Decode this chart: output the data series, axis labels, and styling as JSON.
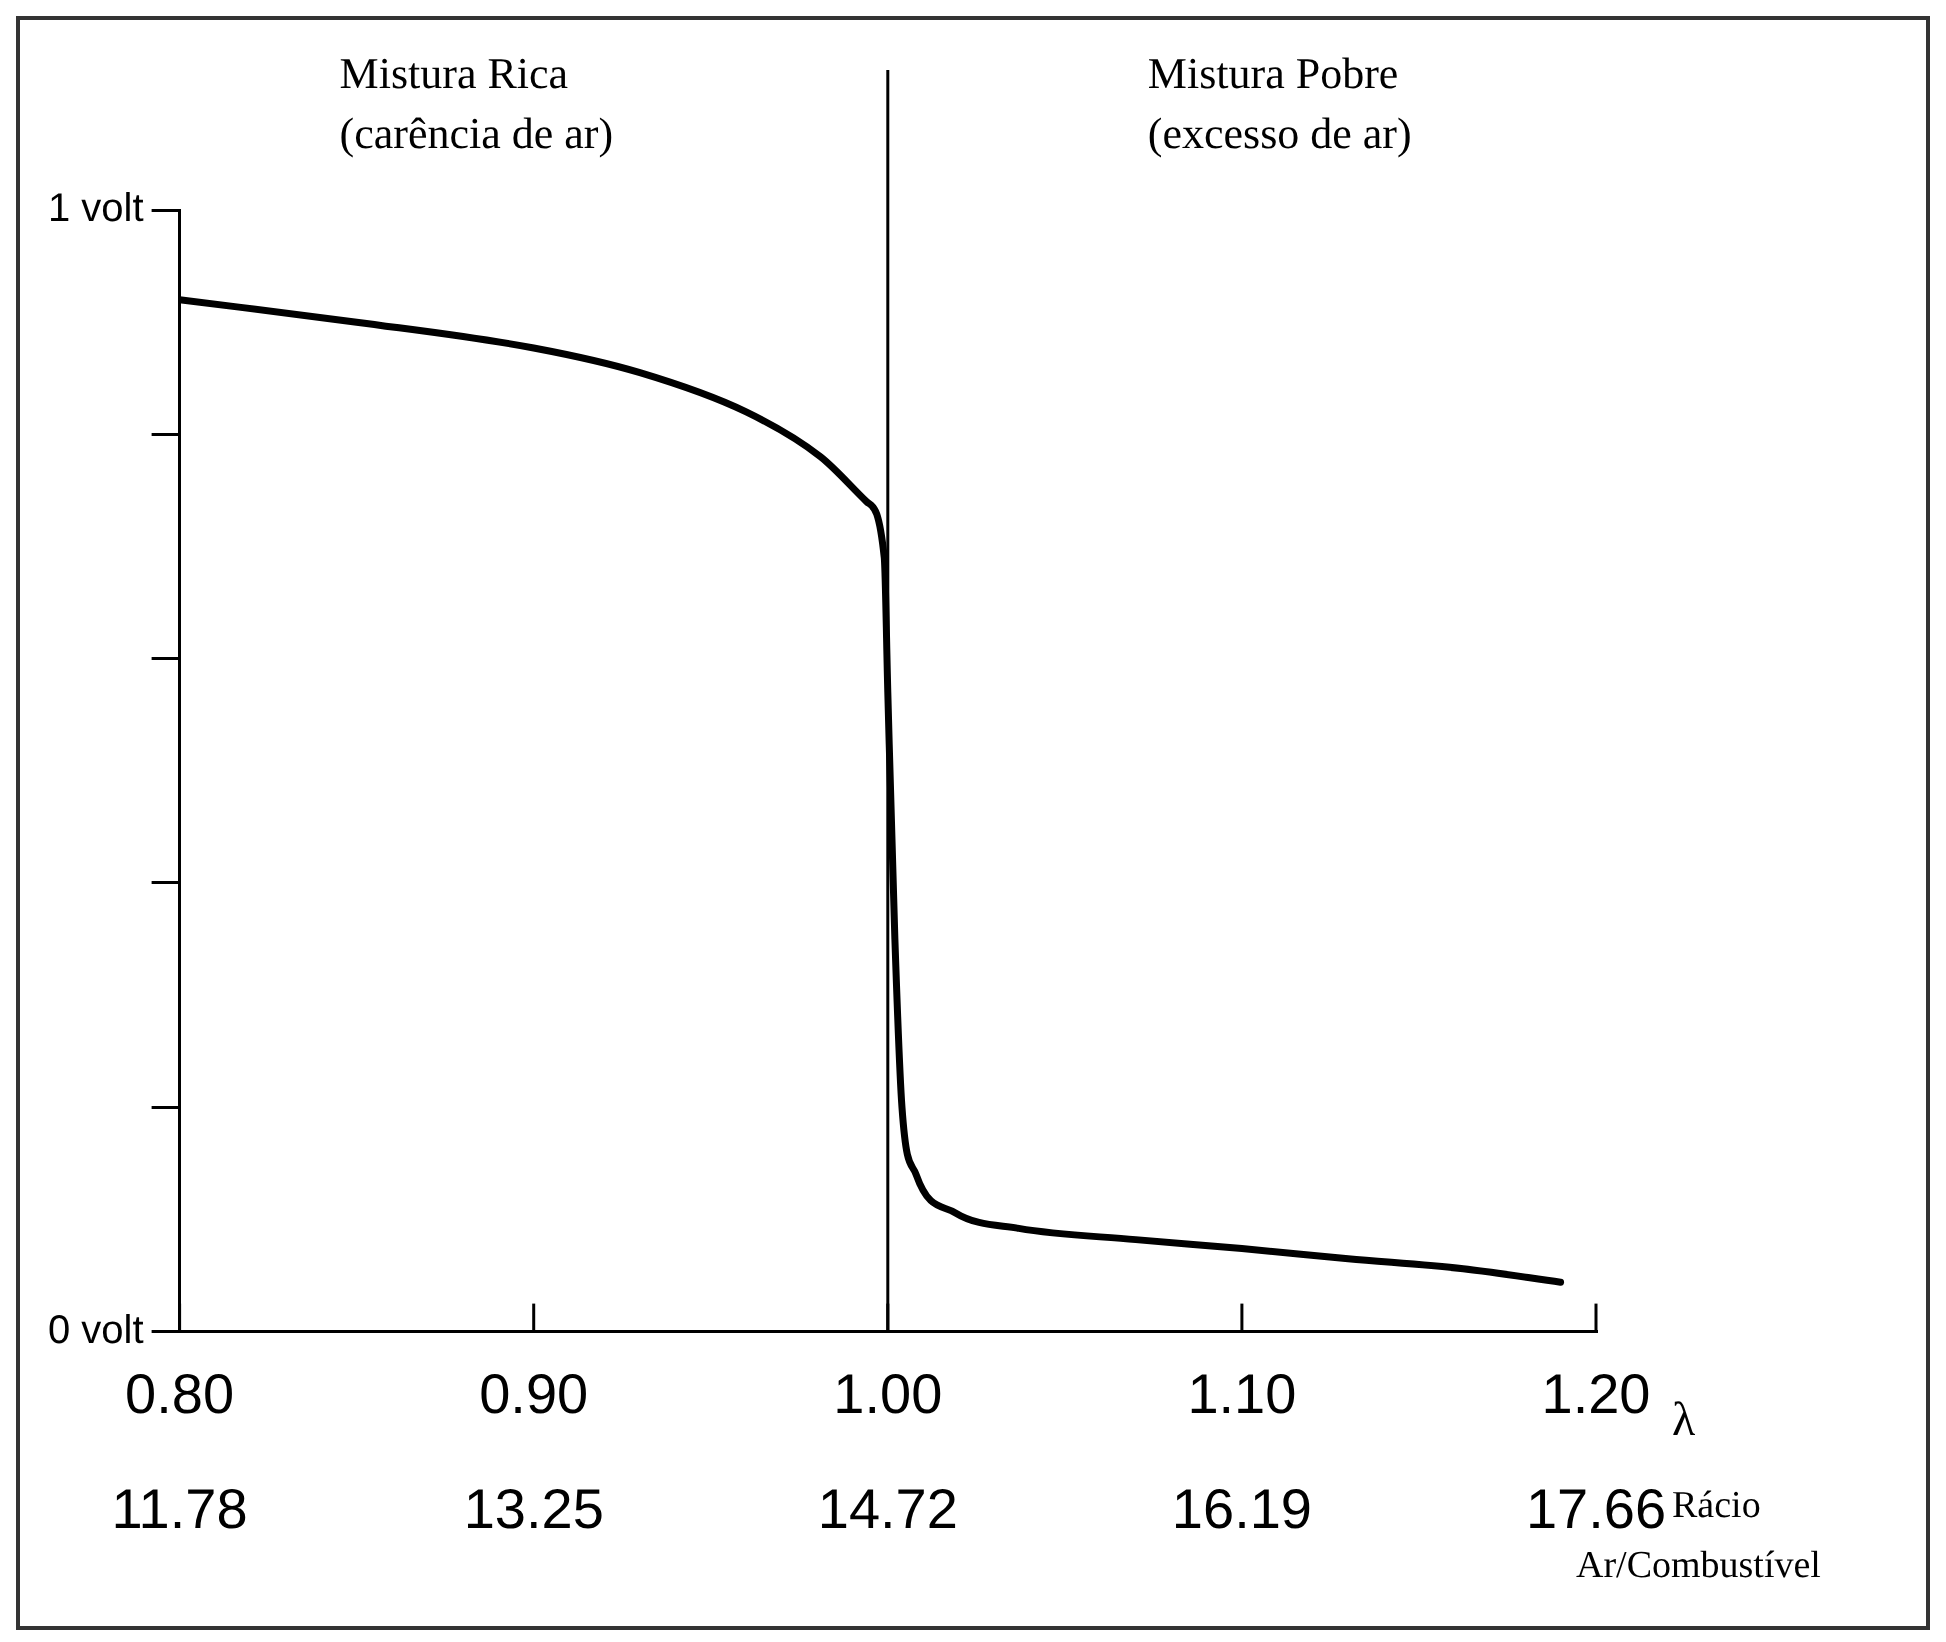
{
  "chart_data": {
    "type": "line",
    "xlabel": "λ",
    "x2label": "Rácio Ar/Combustível",
    "annotations": [
      "Mistura Rica\n(carência de ar)",
      "Mistura Pobre\n(excesso de ar)"
    ],
    "series": [
      {
        "type": "line",
        "color": "#000000",
        "x": [
          0.8,
          0.85,
          0.9,
          0.93,
          0.96,
          0.981,
          0.994,
          0.999,
          1.0,
          1.002,
          1.004,
          1.008,
          1.019,
          1.037,
          1.07,
          1.1,
          1.13,
          1.1625,
          1.19
        ],
        "values": [
          0.92,
          0.9,
          0.877,
          0.855,
          0.82,
          0.78,
          0.74,
          0.69,
          0.57,
          0.35,
          0.2,
          0.14,
          0.106,
          0.092,
          0.082,
          0.074,
          0.065,
          0.056,
          0.044
        ]
      }
    ],
    "xlim": [
      0.8,
      1.2
    ],
    "xticks": [
      {
        "value": 0.8,
        "label": "0.80"
      },
      {
        "value": 0.9,
        "label": "0.90"
      },
      {
        "value": 1.0,
        "label": "1.00"
      },
      {
        "value": 1.1,
        "label": "1.10"
      },
      {
        "value": 1.2,
        "label": "1.20"
      }
    ],
    "x2lim": [
      11.78,
      17.66
    ],
    "x2ticks": [
      11.78,
      13.25,
      14.72,
      16.19,
      17.66
    ],
    "ylim": [
      0,
      1
    ],
    "yticks": [
      {
        "value": 0,
        "label": "0 volt"
      },
      {
        "value": 0.2,
        "label": null
      },
      {
        "value": 0.4,
        "label": null
      },
      {
        "value": 0.6,
        "label": null
      },
      {
        "value": 0.8,
        "label": null
      },
      {
        "value": 1,
        "label": "1 volt"
      }
    ],
    "ref_lines": [
      {
        "axis": "x",
        "value": 1.0,
        "color": "#000000"
      }
    ],
    "grid": false,
    "legend": false,
    "marker": "none",
    "line_style": "solid"
  }
}
